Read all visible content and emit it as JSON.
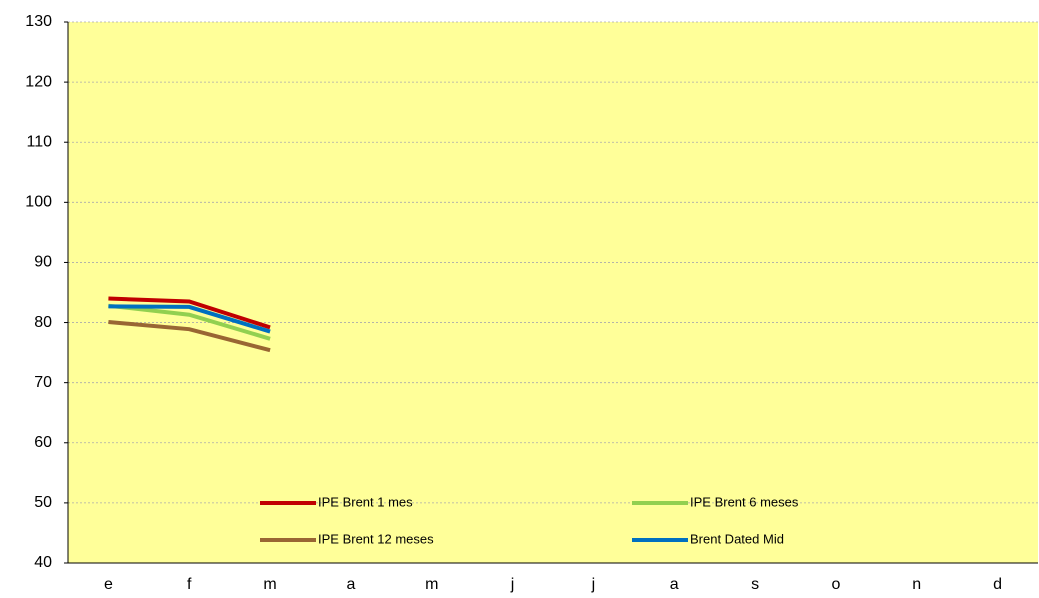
{
  "chart_data": {
    "type": "line",
    "categories": [
      "e",
      "f",
      "m",
      "a",
      "m",
      "j",
      "j",
      "a",
      "s",
      "o",
      "n",
      "d"
    ],
    "series": [
      {
        "name": "IPE Brent 1 mes",
        "color": "#c00000",
        "values": [
          84.0,
          83.5,
          79.2,
          null,
          null,
          null,
          null,
          null,
          null,
          null,
          null,
          null
        ]
      },
      {
        "name": "IPE Brent 6 meses",
        "color": "#92d050",
        "values": [
          82.8,
          81.3,
          77.3,
          null,
          null,
          null,
          null,
          null,
          null,
          null,
          null,
          null
        ]
      },
      {
        "name": "IPE Brent 12 meses",
        "color": "#996633",
        "values": [
          80.1,
          78.9,
          75.4,
          null,
          null,
          null,
          null,
          null,
          null,
          null,
          null,
          null
        ]
      },
      {
        "name": "Brent Dated Mid",
        "color": "#0070c0",
        "values": [
          82.7,
          82.6,
          78.5,
          null,
          null,
          null,
          null,
          null,
          null,
          null,
          null,
          null
        ]
      }
    ],
    "ylim": [
      40,
      130
    ],
    "yticks": [
      40,
      50,
      60,
      70,
      80,
      90,
      100,
      110,
      120,
      130
    ],
    "grid": true,
    "background": "#ffff99"
  }
}
